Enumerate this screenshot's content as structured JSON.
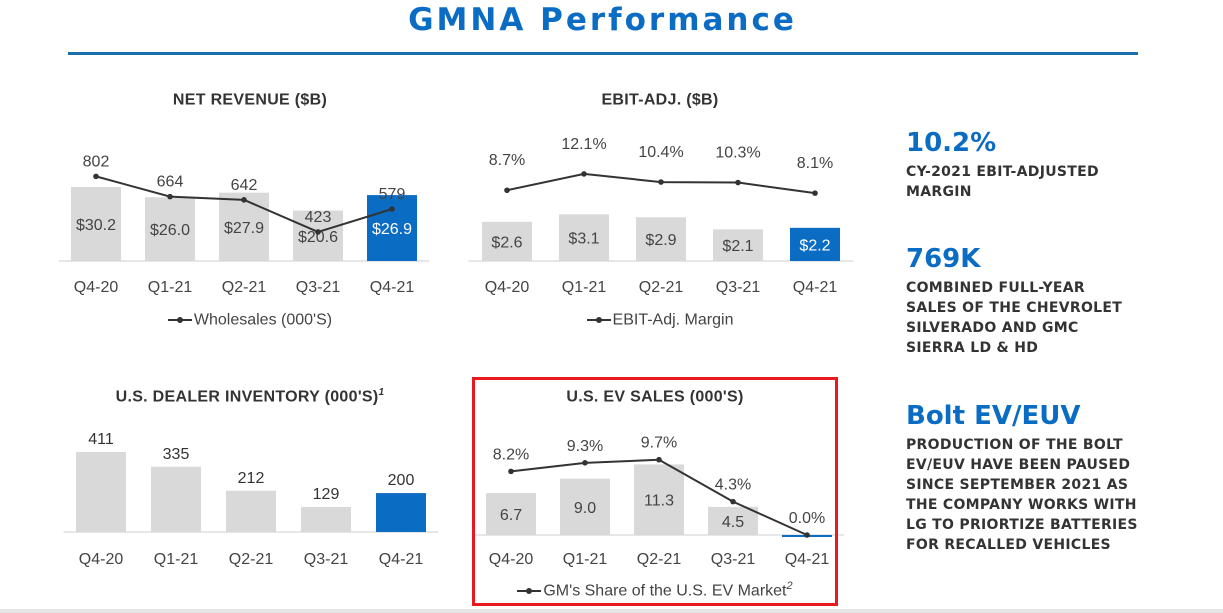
{
  "page": {
    "title": "GMNA Performance"
  },
  "chart_data": [
    {
      "id": "revenue",
      "type": "bar",
      "title": "NET REVENUE ($B)",
      "title_sup": "",
      "categories": [
        "Q4-20",
        "Q1-21",
        "Q2-21",
        "Q3-21",
        "Q4-21"
      ],
      "values": [
        30.2,
        26.0,
        27.9,
        20.6,
        26.9
      ],
      "bar_labels": [
        "$30.2",
        "$26.0",
        "$27.9",
        "$20.6",
        "$26.9"
      ],
      "ylim": [
        0,
        40
      ],
      "line": {
        "name": "Wholesales (000'S)",
        "name_sup": "",
        "values": [
          802,
          664,
          642,
          423,
          579
        ],
        "labels": [
          "802",
          "664",
          "642",
          "423",
          "579"
        ],
        "ylim": [
          300,
          900
        ]
      },
      "highlight_index": 4,
      "colors": {
        "bar": "#d9d9d9",
        "highlight": "#0b6cc4",
        "line": "#333333"
      }
    },
    {
      "id": "ebit",
      "type": "bar",
      "title": "EBIT-ADJ. ($B)",
      "title_sup": "",
      "categories": [
        "Q4-20",
        "Q1-21",
        "Q2-21",
        "Q3-21",
        "Q4-21"
      ],
      "values": [
        2.6,
        3.1,
        2.9,
        2.1,
        2.2
      ],
      "bar_labels": [
        "$2.6",
        "$3.1",
        "$2.9",
        "$2.1",
        "$2.2"
      ],
      "ylim": [
        0,
        6.5
      ],
      "line": {
        "name": "EBIT-Adj. Margin",
        "name_sup": "",
        "values": [
          8.7,
          12.1,
          10.4,
          10.3,
          8.1
        ],
        "labels": [
          "8.7%",
          "12.1%",
          "10.4%",
          "10.3%",
          "8.1%"
        ],
        "ylim": [
          -10,
          15
        ]
      },
      "highlight_index": 4,
      "colors": {
        "bar": "#d9d9d9",
        "highlight": "#0b6cc4",
        "line": "#333333"
      }
    },
    {
      "id": "inventory",
      "type": "bar",
      "title": "U.S. DEALER INVENTORY (000'S)",
      "title_sup": "1",
      "categories": [
        "Q4-20",
        "Q1-21",
        "Q2-21",
        "Q3-21",
        "Q4-21"
      ],
      "values": [
        411,
        335,
        212,
        129,
        200
      ],
      "bar_labels": [
        "411",
        "335",
        "212",
        "129",
        "200"
      ],
      "ylim": [
        0,
        550
      ],
      "highlight_index": 4,
      "colors": {
        "bar": "#d9d9d9",
        "highlight": "#0b6cc4",
        "line": "#333333"
      }
    },
    {
      "id": "ev",
      "type": "bar",
      "title": "U.S. EV SALES (000'S)",
      "title_sup": "",
      "categories": [
        "Q4-20",
        "Q1-21",
        "Q2-21",
        "Q3-21",
        "Q4-21"
      ],
      "values": [
        6.7,
        9.0,
        11.3,
        4.5,
        0.0
      ],
      "bar_labels": [
        "6.7",
        "9.0",
        "11.3",
        "4.5",
        ""
      ],
      "ylim": [
        0,
        16
      ],
      "line": {
        "name": "GM's Share of the U.S. EV Market",
        "name_sup": "2",
        "values": [
          8.2,
          9.3,
          9.7,
          4.3,
          0.0
        ],
        "labels": [
          "8.2%",
          "9.3%",
          "9.7%",
          "4.3%",
          "0.0%"
        ],
        "ylim": [
          0,
          12.5
        ]
      },
      "highlight_index": 4,
      "colors": {
        "bar": "#d9d9d9",
        "highlight": "#0b6cc4",
        "line": "#333333"
      }
    }
  ],
  "kpis": [
    {
      "value": "10.2%",
      "desc": "CY-2021 EBIT-ADJUSTED MARGIN"
    },
    {
      "value": "769K",
      "desc": "COMBINED FULL-YEAR SALES OF THE CHEVROLET SILVERADO AND GMC SIERRA LD & HD"
    },
    {
      "value": "Bolt EV/EUV",
      "desc": "PRODUCTION OF THE BOLT EV/EUV HAVE BEEN PAUSED SINCE SEPTEMBER 2021 AS THE COMPANY WORKS WITH LG TO PRIORTIZE BATTERIES FOR RECALLED VEHICLES"
    }
  ]
}
